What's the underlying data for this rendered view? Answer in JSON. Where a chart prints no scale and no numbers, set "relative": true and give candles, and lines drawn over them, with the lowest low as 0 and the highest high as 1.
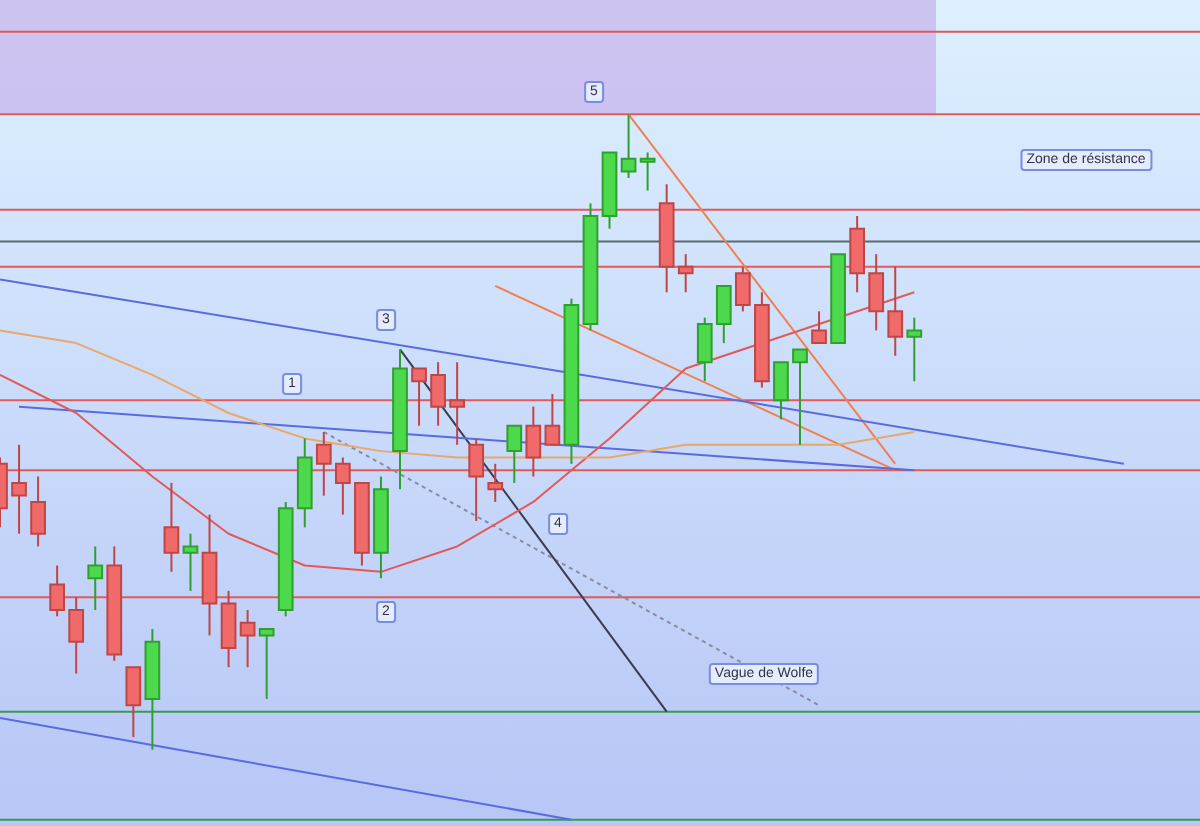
{
  "chart_data": {
    "type": "candlestick",
    "relative": true,
    "ylim": [
      -0.12,
      1.18
    ],
    "legend": false,
    "tick_labels": false,
    "categories": [
      null,
      null,
      null,
      null,
      null,
      null,
      null,
      null,
      null,
      null,
      null,
      null,
      null,
      null,
      null,
      null,
      null,
      null,
      null,
      null,
      null,
      null,
      null,
      null,
      null,
      null,
      null,
      null,
      null,
      null,
      null,
      null,
      null,
      null,
      null,
      null,
      null,
      null,
      null,
      null,
      null,
      null,
      null,
      null,
      null,
      null,
      null,
      null,
      null,
      null,
      null,
      null,
      null,
      null,
      null,
      null,
      null,
      null,
      null,
      null,
      null,
      null,
      null,
      null
    ],
    "ohlc": [
      [
        0.45,
        0.46,
        0.35,
        0.38
      ],
      [
        0.42,
        0.48,
        0.34,
        0.4
      ],
      [
        0.39,
        0.43,
        0.32,
        0.34
      ],
      [
        0.26,
        0.29,
        0.21,
        0.22
      ],
      [
        0.22,
        0.24,
        0.12,
        0.17
      ],
      [
        0.27,
        0.32,
        0.22,
        0.29
      ],
      [
        0.29,
        0.32,
        0.14,
        0.15
      ],
      [
        0.13,
        0.13,
        0.02,
        0.07
      ],
      [
        0.08,
        0.19,
        0,
        0.17
      ],
      [
        0.35,
        0.42,
        0.28,
        0.31
      ],
      [
        0.31,
        0.34,
        0.25,
        0.32
      ],
      [
        0.31,
        0.37,
        0.18,
        0.23
      ],
      [
        0.23,
        0.25,
        0.13,
        0.16
      ],
      [
        0.2,
        0.22,
        0.13,
        0.18
      ],
      [
        0.18,
        0.19,
        0.08,
        0.19
      ],
      [
        0.22,
        0.39,
        0.21,
        0.38
      ],
      [
        0.38,
        0.49,
        0.35,
        0.46
      ],
      [
        0.48,
        0.5,
        0.4,
        0.45
      ],
      [
        0.45,
        0.46,
        0.37,
        0.42
      ],
      [
        0.42,
        0.42,
        0.29,
        0.31
      ],
      [
        0.31,
        0.43,
        0.27,
        0.41
      ],
      [
        0.47,
        0.63,
        0.41,
        0.6
      ],
      [
        0.6,
        0.6,
        0.51,
        0.58
      ],
      [
        0.59,
        0.61,
        0.51,
        0.54
      ],
      [
        0.55,
        0.61,
        0.48,
        0.54
      ],
      [
        0.48,
        0.49,
        0.36,
        0.43
      ],
      [
        0.42,
        0.45,
        0.39,
        0.41
      ],
      [
        0.47,
        0.51,
        0.42,
        0.51
      ],
      [
        0.51,
        0.54,
        0.43,
        0.46
      ],
      [
        0.51,
        0.56,
        0.48,
        0.48
      ],
      [
        0.48,
        0.71,
        0.45,
        0.7
      ],
      [
        0.67,
        0.86,
        0.66,
        0.84
      ],
      [
        0.84,
        0.94,
        0.82,
        0.94
      ],
      [
        0.91,
        1,
        0.9,
        0.93
      ],
      [
        0.93,
        0.94,
        0.88,
        0.93
      ],
      [
        0.86,
        0.89,
        0.72,
        0.76
      ],
      [
        0.76,
        0.78,
        0.72,
        0.75
      ],
      [
        0.61,
        0.68,
        0.58,
        0.67
      ],
      [
        0.67,
        0.73,
        0.64,
        0.73
      ],
      [
        0.75,
        0.76,
        0.69,
        0.7
      ],
      [
        0.7,
        0.72,
        0.57,
        0.58
      ],
      [
        0.55,
        0.61,
        0.52,
        0.61
      ],
      [
        0.61,
        0.63,
        0.48,
        0.63
      ],
      [
        0.66,
        0.69,
        0.64,
        0.64
      ],
      [
        0.64,
        0.78,
        0.64,
        0.78
      ],
      [
        0.82,
        0.84,
        0.72,
        0.75
      ],
      [
        0.75,
        0.78,
        0.66,
        0.69
      ],
      [
        0.69,
        0.76,
        0.62,
        0.65
      ],
      [
        0.65,
        0.68,
        0.58,
        0.66
      ],
      null,
      null,
      null,
      null,
      null,
      null,
      null,
      null,
      null,
      null,
      null,
      null,
      null,
      null,
      null
    ],
    "series": [
      {
        "type": "line",
        "color": "#e8a868",
        "values": [
          0.66,
          null,
          null,
          null,
          0.64,
          null,
          null,
          null,
          0.59,
          null,
          null,
          null,
          0.53,
          null,
          null,
          null,
          0.49,
          null,
          null,
          null,
          0.47,
          null,
          null,
          null,
          0.46,
          null,
          null,
          null,
          0.46,
          null,
          null,
          null,
          0.46,
          null,
          null,
          null,
          0.48,
          null,
          null,
          null,
          0.48,
          null,
          null,
          null,
          0.48,
          null,
          null,
          null,
          0.5,
          null,
          null,
          null,
          null,
          null,
          null,
          null,
          null,
          null,
          null,
          null,
          null,
          null,
          null,
          null
        ]
      },
      {
        "type": "line",
        "color": "#e05a5a",
        "values": [
          0.59,
          null,
          null,
          null,
          0.53,
          null,
          null,
          null,
          0.43,
          null,
          null,
          null,
          0.34,
          null,
          null,
          null,
          0.29,
          null,
          null,
          null,
          0.28,
          null,
          null,
          null,
          0.32,
          null,
          null,
          null,
          0.39,
          null,
          null,
          null,
          0.49,
          null,
          null,
          null,
          0.6,
          null,
          null,
          null,
          null,
          null,
          null,
          null,
          null,
          null,
          null,
          null,
          0.72,
          null,
          null,
          null,
          null,
          null,
          null,
          null,
          null,
          null,
          null,
          null,
          null,
          null,
          null,
          null
        ]
      },
      {
        "type": "line",
        "color": "#5a6ae0",
        "values": [
          0.74,
          null,
          null,
          null,
          null,
          null,
          null,
          null,
          null,
          null,
          null,
          null,
          null,
          null,
          null,
          null,
          null,
          null,
          null,
          null,
          null,
          null,
          null,
          null,
          null,
          null,
          null,
          null,
          null,
          null,
          null,
          null,
          null,
          null,
          null,
          null,
          null,
          null,
          null,
          null,
          null,
          null,
          null,
          null,
          null,
          null,
          null,
          null,
          null,
          null,
          null,
          null,
          null,
          null,
          null,
          null,
          null,
          null,
          null,
          0.45,
          null,
          null,
          null,
          null
        ]
      },
      {
        "type": "line",
        "color": "#5a6ae0",
        "values": [
          null,
          0.54,
          null,
          null,
          null,
          null,
          null,
          null,
          null,
          null,
          null,
          null,
          null,
          null,
          null,
          null,
          null,
          null,
          null,
          null,
          null,
          null,
          null,
          null,
          null,
          null,
          null,
          null,
          null,
          null,
          null,
          null,
          null,
          null,
          null,
          null,
          null,
          null,
          null,
          null,
          null,
          null,
          null,
          null,
          null,
          null,
          null,
          null,
          0.44,
          null,
          null,
          null,
          null,
          null,
          null,
          null,
          null,
          null,
          null,
          null,
          null,
          null,
          null,
          null
        ]
      },
      {
        "type": "line",
        "color": "#5a6ae0",
        "values": [
          0.05,
          null,
          null,
          null,
          null,
          null,
          null,
          null,
          null,
          null,
          null,
          null,
          null,
          null,
          null,
          null,
          null,
          null,
          null,
          null,
          null,
          null,
          null,
          null,
          null,
          null,
          null,
          null,
          null,
          null,
          -0.11,
          null,
          null,
          null,
          null,
          null,
          null,
          null,
          null,
          null,
          null,
          null,
          null,
          null,
          null,
          null,
          null,
          null,
          null,
          null,
          null,
          null,
          null,
          null,
          null,
          null,
          null,
          null,
          null,
          null,
          null,
          null,
          null,
          null
        ]
      },
      {
        "type": "line",
        "color": "#f08050",
        "values": [
          null,
          null,
          null,
          null,
          null,
          null,
          null,
          null,
          null,
          null,
          null,
          null,
          null,
          null,
          null,
          null,
          null,
          null,
          null,
          null,
          null,
          null,
          null,
          null,
          null,
          null,
          null,
          null,
          null,
          null,
          null,
          null,
          null,
          1.0,
          null,
          null,
          null,
          null,
          null,
          null,
          null,
          null,
          null,
          null,
          null,
          null,
          null,
          0.45,
          null,
          null,
          null,
          null,
          null,
          null,
          null,
          null,
          null,
          null,
          null,
          null,
          null,
          null,
          null,
          null
        ]
      },
      {
        "type": "line",
        "color": "#f08050",
        "values": [
          null,
          null,
          null,
          null,
          null,
          null,
          null,
          null,
          null,
          null,
          null,
          null,
          null,
          null,
          null,
          null,
          null,
          null,
          null,
          null,
          null,
          null,
          null,
          null,
          null,
          null,
          0.73,
          null,
          null,
          null,
          null,
          null,
          null,
          null,
          null,
          null,
          null,
          null,
          null,
          null,
          null,
          null,
          null,
          null,
          null,
          null,
          null,
          0.44,
          null,
          null,
          null,
          null,
          null,
          null,
          null,
          null,
          null,
          null,
          null,
          null,
          null,
          null,
          null,
          null
        ]
      },
      {
        "type": "line",
        "color": "#3a3a50",
        "values": [
          null,
          null,
          null,
          null,
          null,
          null,
          null,
          null,
          null,
          null,
          null,
          null,
          null,
          null,
          null,
          null,
          null,
          null,
          null,
          null,
          null,
          0.63,
          null,
          null,
          null,
          null,
          null,
          null,
          null,
          null,
          null,
          null,
          null,
          null,
          null,
          0.06,
          null,
          null,
          null,
          null,
          null,
          null,
          null,
          null,
          null,
          null,
          null,
          null,
          null,
          null,
          null,
          null,
          null,
          null,
          null,
          null,
          null,
          null,
          null,
          null,
          null,
          null,
          null,
          null
        ]
      },
      {
        "type": "line",
        "color": "#8a8aa0",
        "line_style": "dotted",
        "values": [
          null,
          null,
          null,
          null,
          null,
          null,
          null,
          null,
          null,
          null,
          null,
          null,
          null,
          null,
          null,
          null,
          null,
          0.5,
          null,
          null,
          null,
          null,
          null,
          null,
          null,
          null,
          null,
          null,
          null,
          null,
          null,
          null,
          null,
          null,
          null,
          null,
          null,
          null,
          null,
          null,
          null,
          null,
          null,
          0.07,
          null,
          null,
          null,
          null,
          null,
          null,
          null,
          null,
          null,
          null,
          null,
          null,
          null,
          null,
          null,
          null,
          null,
          null,
          null,
          null
        ]
      }
    ],
    "ref_lines": [
      {
        "axis": "y",
        "value": 1.13,
        "color": "#e05a5a"
      },
      {
        "axis": "y",
        "value": 1.0,
        "color": "#e05a5a"
      },
      {
        "axis": "y",
        "value": 0.85,
        "color": "#e05a5a"
      },
      {
        "axis": "y",
        "value": 0.8,
        "color": "#5a6a6a"
      },
      {
        "axis": "y",
        "value": 0.76,
        "color": "#e05a5a"
      },
      {
        "axis": "y",
        "value": 0.55,
        "color": "#e05a5a"
      },
      {
        "axis": "y",
        "value": 0.44,
        "color": "#e05a5a"
      },
      {
        "axis": "y",
        "value": 0.24,
        "color": "#e05a5a"
      },
      {
        "axis": "y",
        "value": 0.06,
        "color": "#3a9a4a"
      },
      {
        "axis": "y",
        "value": -0.11,
        "color": "#3a9a4a"
      }
    ],
    "bands": [
      {
        "axis": "y",
        "from": 1.0,
        "to": 1.18,
        "color": "#c9b8ee"
      }
    ],
    "annotations": [
      "Zone de résistance",
      "Vague de Wolfe",
      "1",
      "2",
      "3",
      "4",
      "5"
    ]
  }
}
